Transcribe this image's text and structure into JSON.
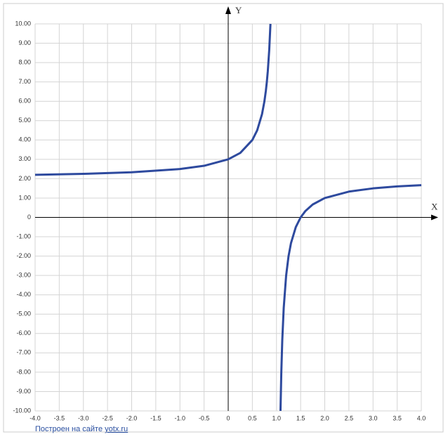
{
  "chart_data": {
    "type": "line",
    "x_label": "X",
    "y_label": "Y",
    "xlim": [
      -4,
      4
    ],
    "ylim": [
      -10,
      10
    ],
    "xticks": [
      {
        "value": -4,
        "label": "-4.0"
      },
      -3.5,
      {
        "value": -3,
        "label": "-3.0"
      },
      -2.5,
      {
        "value": -2,
        "label": "-2.0"
      },
      -1.5,
      {
        "value": -1,
        "label": "-1.0"
      },
      -0.5,
      0,
      0.5,
      {
        "value": 1,
        "label": "1.0"
      },
      1.5,
      {
        "value": 2,
        "label": "2.0"
      },
      2.5,
      {
        "value": 3,
        "label": "3.0"
      },
      3.5,
      {
        "value": 4,
        "label": "4.0"
      }
    ],
    "yticks": [
      {
        "value": 10,
        "label": "10.00"
      },
      {
        "value": 9,
        "label": "9.00"
      },
      {
        "value": 8,
        "label": "8.00"
      },
      {
        "value": 7,
        "label": "7.00"
      },
      {
        "value": 6,
        "label": "6.00"
      },
      {
        "value": 5,
        "label": "5.00"
      },
      {
        "value": 4,
        "label": "4.00"
      },
      {
        "value": 3,
        "label": "3.00"
      },
      {
        "value": 2,
        "label": "2.00"
      },
      {
        "value": 1,
        "label": "1.00"
      },
      0,
      {
        "value": -1,
        "label": "-1.00"
      },
      {
        "value": -2,
        "label": "-2.00"
      },
      {
        "value": -3,
        "label": "-3.00"
      },
      {
        "value": -4,
        "label": "-4.00"
      },
      {
        "value": -5,
        "label": "-5.00"
      },
      {
        "value": -6,
        "label": "-6.00"
      },
      {
        "value": -7,
        "label": "-7.00"
      },
      {
        "value": -8,
        "label": "-8.00"
      },
      {
        "value": -9,
        "label": "-9.00"
      },
      {
        "value": -10,
        "label": "-10.00"
      }
    ],
    "grid": true,
    "series": [
      {
        "color": "#2e4a9e",
        "x": [
          -4,
          -3,
          -2,
          -1,
          -0.5,
          0,
          0.25,
          0.5,
          0.6,
          0.7,
          0.75,
          0.78,
          0.8,
          0.82,
          0.85,
          0.875,
          1,
          1.083,
          1.1,
          1.12,
          1.15,
          1.2,
          1.25,
          1.3,
          1.4,
          1.5,
          1.6,
          1.75,
          2,
          2.5,
          3,
          3.5,
          4
        ],
        "values": [
          2.2,
          2.25,
          2.333,
          2.5,
          2.667,
          3,
          3.333,
          4,
          4.5,
          5.333,
          6,
          6.545,
          7,
          7.556,
          8.667,
          10,
          null,
          -10,
          -8,
          -6.333,
          -4.667,
          -3,
          -2,
          -1.333,
          -0.5,
          0,
          0.333,
          0.667,
          1,
          1.333,
          1.5,
          1.6,
          1.667
        ]
      }
    ],
    "footer": {
      "text": "Построен на сайте ",
      "link": "yotx.ru"
    }
  }
}
